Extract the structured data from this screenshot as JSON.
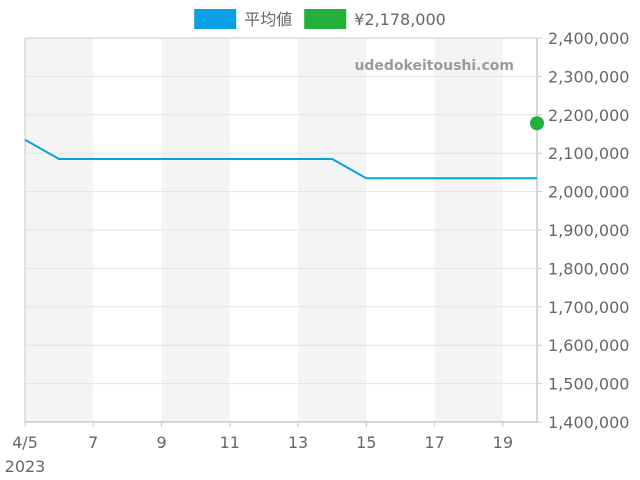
{
  "watermark": "udedokeitoushi.com",
  "colors": {
    "average_line": "#0aa0e6",
    "current_point": "#22b03a",
    "band": "#f4f4f4",
    "grid": "#e2e2e2",
    "axis": "#c8c8c8",
    "text": "#666666"
  },
  "chart_data": {
    "type": "line",
    "legend_position": "top-center",
    "legend": [
      {
        "label": "平均値",
        "color": "#0aa0e6"
      },
      {
        "label": "¥2,178,000",
        "color": "#22b03a"
      }
    ],
    "xlim": [
      "2023-04-05",
      "2023-04-20"
    ],
    "ylim": [
      1400000,
      2400000
    ],
    "grid": true,
    "y_axis_side": "right",
    "x_ticks": [
      {
        "date": "2023-04-05",
        "label": "4/5",
        "sublabel": "2023"
      },
      {
        "date": "2023-04-07",
        "label": "7"
      },
      {
        "date": "2023-04-09",
        "label": "9"
      },
      {
        "date": "2023-04-11",
        "label": "11"
      },
      {
        "date": "2023-04-13",
        "label": "13"
      },
      {
        "date": "2023-04-15",
        "label": "15"
      },
      {
        "date": "2023-04-17",
        "label": "17"
      },
      {
        "date": "2023-04-19",
        "label": "19"
      }
    ],
    "y_ticks": [
      {
        "value": 2400000,
        "label": "2,400,000"
      },
      {
        "value": 2300000,
        "label": "2,300,000"
      },
      {
        "value": 2200000,
        "label": "2,200,000"
      },
      {
        "value": 2100000,
        "label": "2,100,000"
      },
      {
        "value": 2000000,
        "label": "2,000,000"
      },
      {
        "value": 1900000,
        "label": "1,900,000"
      },
      {
        "value": 1800000,
        "label": "1,800,000"
      },
      {
        "value": 1700000,
        "label": "1,700,000"
      },
      {
        "value": 1600000,
        "label": "1,600,000"
      },
      {
        "value": 1500000,
        "label": "1,500,000"
      },
      {
        "value": 1400000,
        "label": "1,400,000"
      }
    ],
    "shaded_bands": [
      [
        "2023-04-05",
        "2023-04-07"
      ],
      [
        "2023-04-09",
        "2023-04-11"
      ],
      [
        "2023-04-13",
        "2023-04-15"
      ],
      [
        "2023-04-17",
        "2023-04-19"
      ]
    ],
    "series": [
      {
        "name": "平均値",
        "kind": "line",
        "color": "#0aa0e6",
        "points": [
          {
            "x": "2023-04-05",
            "y": 2135000
          },
          {
            "x": "2023-04-06",
            "y": 2085000
          },
          {
            "x": "2023-04-14",
            "y": 2085000
          },
          {
            "x": "2023-04-15",
            "y": 2035000
          },
          {
            "x": "2023-04-20",
            "y": 2035000
          }
        ]
      },
      {
        "name": "¥2,178,000",
        "kind": "point",
        "color": "#22b03a",
        "points": [
          {
            "x": "2023-04-20",
            "y": 2178000
          }
        ]
      }
    ]
  }
}
